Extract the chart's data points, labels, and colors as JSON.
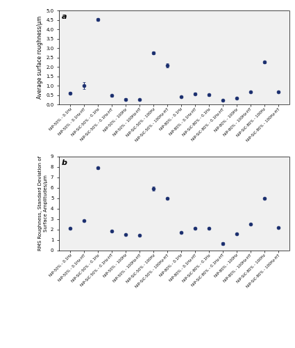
{
  "labels": [
    "NiP-50% - 0.1Hz",
    "NiP-50% - 0.1Hz-HT",
    "NiP-SiC-50% - 0.1Hz",
    "NiP-SiC-50% - 0.1Hz-HT",
    "NiP-50% - 100Hz",
    "NiP-50% - 100Hz-HT",
    "NiP-SiC-50% - 100Hz",
    "NiP-SiC-50% - 100Hz-HT",
    "NiP-80% - 0.1Hz",
    "NiP-80% - 0.1Hz-HT",
    "NiP-SiC-80% - 0.1Hz",
    "NiP-SiC-80% - 0.1Hz-HT",
    "NiP-80% - 100Hz",
    "NiP-80% - 100Hz-HT",
    "NiP-SiC-80% - 100Hz",
    "NiP-SiC-80% - 100Hz-HT"
  ],
  "Ra_values": [
    0.62,
    1.02,
    4.52,
    0.48,
    0.28,
    0.26,
    2.75,
    2.08,
    0.42,
    0.58,
    0.52,
    0.22,
    0.35,
    0.68,
    2.25,
    0.68
  ],
  "Ra_errors": [
    0.05,
    0.18,
    0.08,
    0.05,
    0.05,
    0.03,
    0.08,
    0.12,
    0.05,
    0.05,
    0.05,
    0.03,
    0.03,
    0.05,
    0.05,
    0.05
  ],
  "Rq_values": [
    2.1,
    2.85,
    7.9,
    1.85,
    1.55,
    1.45,
    5.95,
    5.0,
    1.72,
    2.1,
    2.1,
    0.68,
    1.58,
    2.5,
    5.0,
    2.2
  ],
  "Rq_errors": [
    0.05,
    0.05,
    0.1,
    0.05,
    0.05,
    0.05,
    0.2,
    0.05,
    0.05,
    0.05,
    0.05,
    0.15,
    0.05,
    0.05,
    0.05,
    0.05
  ],
  "dot_color": "#1a2e6e",
  "Ra_ylim": [
    0,
    5
  ],
  "Ra_yticks": [
    0,
    0.5,
    1.0,
    1.5,
    2.0,
    2.5,
    3.0,
    3.5,
    4.0,
    4.5,
    5.0
  ],
  "Rq_ylim": [
    0,
    9
  ],
  "Rq_yticks": [
    0,
    1,
    2,
    3,
    4,
    5,
    6,
    7,
    8,
    9
  ],
  "Ra_ylabel": "Average surface roughness/μm",
  "Rq_ylabel": "RMS Roughness, Standard Deviation of\nSurface Amplitudes/μm",
  "label_a": "a",
  "label_b": "b",
  "bg_color": "#f0f0f0"
}
